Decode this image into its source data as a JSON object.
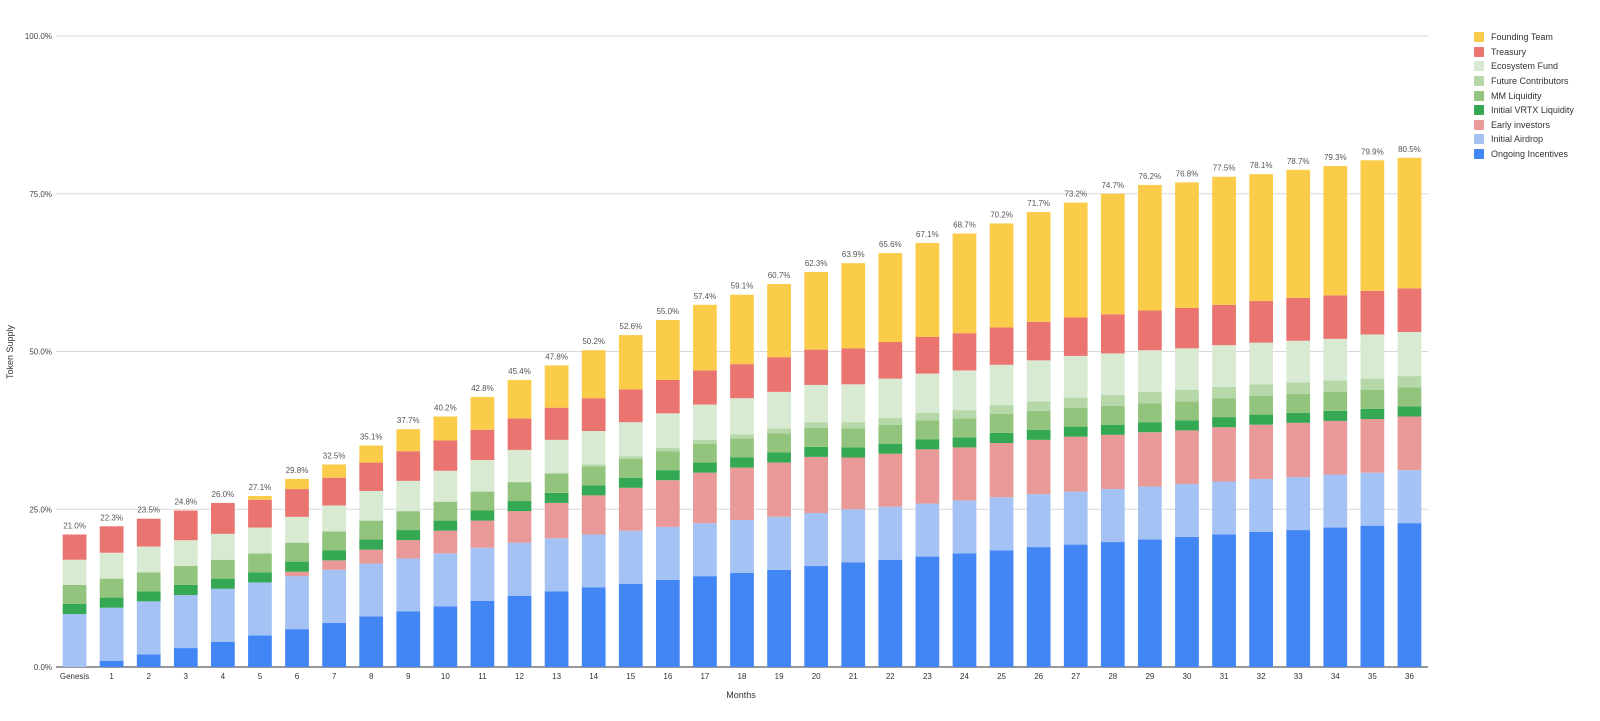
{
  "chart_data": {
    "type": "bar",
    "stacked": true,
    "title": "",
    "xlabel": "Months",
    "ylabel": "Token Supply",
    "ylim": [
      0,
      100
    ],
    "yticks": [
      "0.0%",
      "25.0%",
      "50.0%",
      "75.0%",
      "100.0%"
    ],
    "grid": true,
    "legend_position": "top-right",
    "categories": [
      "Genesis",
      "1",
      "2",
      "3",
      "4",
      "5",
      "6",
      "7",
      "8",
      "9",
      "10",
      "11",
      "12",
      "13",
      "14",
      "15",
      "16",
      "17",
      "18",
      "19",
      "20",
      "21",
      "22",
      "23",
      "24",
      "25",
      "26",
      "27",
      "28",
      "29",
      "30",
      "31",
      "32",
      "33",
      "34",
      "35",
      "36"
    ],
    "totals": [
      "21.0%",
      "22.3%",
      "23.5%",
      "24.8%",
      "26.0%",
      "27.1%",
      "29.8%",
      "32.5%",
      "35.1%",
      "37.7%",
      "40.2%",
      "42.8%",
      "45.4%",
      "47.8%",
      "50.2%",
      "52.6%",
      "55.0%",
      "57.4%",
      "59.1%",
      "60.7%",
      "62.3%",
      "63.9%",
      "65.6%",
      "67.1%",
      "68.7%",
      "70.2%",
      "71.7%",
      "73.2%",
      "74.7%",
      "76.2%",
      "76.8%",
      "77.5%",
      "78.1%",
      "78.7%",
      "79.3%",
      "79.9%",
      "80.5%"
    ],
    "series": [
      {
        "name": "Ongoing Incentives",
        "color": "#4285f4",
        "values": [
          0,
          1.0,
          2.0,
          3.0,
          4.0,
          5.0,
          6.0,
          7.0,
          8.0,
          8.8,
          9.6,
          10.5,
          11.3,
          12.0,
          12.6,
          13.2,
          13.8,
          14.4,
          14.9,
          15.4,
          16.0,
          16.6,
          17.0,
          17.5,
          18.0,
          18.5,
          19.0,
          19.4,
          19.8,
          20.2,
          20.6,
          21.0,
          21.4,
          21.7,
          22.1,
          22.4,
          22.8
        ]
      },
      {
        "name": "Initial Airdrop",
        "color": "#a4c2f4",
        "values": [
          8.4,
          8.4,
          8.4,
          8.4,
          8.4,
          8.4,
          8.4,
          8.4,
          8.4,
          8.4,
          8.4,
          8.4,
          8.4,
          8.4,
          8.4,
          8.4,
          8.4,
          8.4,
          8.4,
          8.4,
          8.4,
          8.4,
          8.4,
          8.4,
          8.4,
          8.4,
          8.4,
          8.4,
          8.4,
          8.4,
          8.4,
          8.4,
          8.4,
          8.4,
          8.4,
          8.4,
          8.4
        ]
      },
      {
        "name": "Early investors",
        "color": "#ea9999",
        "values": [
          0,
          0,
          0,
          0,
          0,
          0,
          0.7,
          1.5,
          2.2,
          2.9,
          3.6,
          4.3,
          5.0,
          5.6,
          6.2,
          6.8,
          7.4,
          8.0,
          8.3,
          8.6,
          8.9,
          8.2,
          8.4,
          8.6,
          8.4,
          8.6,
          8.6,
          8.7,
          8.6,
          8.6,
          8.5,
          8.6,
          8.6,
          8.6,
          8.5,
          8.5,
          8.5
        ]
      },
      {
        "name": "Initial VRTX Liquidity",
        "color": "#34a853",
        "values": [
          1.6,
          1.6,
          1.6,
          1.6,
          1.6,
          1.6,
          1.6,
          1.6,
          1.6,
          1.6,
          1.6,
          1.6,
          1.6,
          1.6,
          1.6,
          1.6,
          1.6,
          1.6,
          1.6,
          1.6,
          1.6,
          1.6,
          1.6,
          1.6,
          1.6,
          1.6,
          1.6,
          1.6,
          1.6,
          1.6,
          1.6,
          1.6,
          1.6,
          1.6,
          1.6,
          1.6,
          1.6
        ]
      },
      {
        "name": "MM Liquidity",
        "color": "#93c47d",
        "values": [
          3.0,
          3.0,
          3.0,
          3.0,
          3.0,
          3.0,
          3.0,
          3.0,
          3.0,
          3.0,
          3.0,
          3.0,
          3.0,
          3.0,
          3.0,
          3.0,
          3.0,
          3.0,
          3.0,
          3.0,
          3.0,
          3.0,
          3.0,
          3.0,
          3.0,
          3.0,
          3.0,
          3.0,
          3.0,
          3.0,
          3.0,
          3.0,
          3.0,
          3.0,
          3.0,
          3.0,
          3.0
        ]
      },
      {
        "name": "Future Contributors",
        "color": "#b6d7a8",
        "values": [
          0,
          0,
          0,
          0,
          0,
          0,
          0,
          0,
          0,
          0,
          0,
          0,
          0,
          0.2,
          0.3,
          0.4,
          0.5,
          0.6,
          0.7,
          0.8,
          0.9,
          1.0,
          1.1,
          1.2,
          1.3,
          1.4,
          1.5,
          1.6,
          1.7,
          1.8,
          1.8,
          1.8,
          1.8,
          1.8,
          1.8,
          1.8,
          1.8
        ]
      },
      {
        "name": "Ecosystem Fund",
        "color": "#d9ead3",
        "values": [
          4.0,
          4.1,
          4.1,
          4.1,
          4.1,
          4.1,
          4.1,
          4.1,
          4.7,
          4.8,
          4.9,
          5.0,
          5.1,
          5.2,
          5.3,
          5.4,
          5.5,
          5.6,
          5.7,
          5.8,
          5.9,
          6.0,
          6.2,
          6.2,
          6.3,
          6.4,
          6.5,
          6.6,
          6.6,
          6.6,
          6.6,
          6.6,
          6.6,
          6.6,
          6.6,
          7.0,
          7.0
        ]
      },
      {
        "name": "Treasury",
        "color": "#ea7570",
        "values": [
          4.0,
          4.2,
          4.4,
          4.7,
          4.9,
          4.4,
          4.4,
          4.4,
          4.5,
          4.7,
          4.8,
          4.8,
          5.0,
          5.1,
          5.2,
          5.2,
          5.3,
          5.4,
          5.4,
          5.5,
          5.6,
          5.7,
          5.8,
          5.8,
          5.9,
          5.9,
          6.1,
          6.1,
          6.2,
          6.3,
          6.4,
          6.4,
          6.6,
          6.8,
          6.9,
          6.9,
          6.9
        ]
      },
      {
        "name": "Founding Team",
        "color": "#fbcc4a",
        "values": [
          0,
          0,
          0,
          0,
          0,
          0.6,
          1.6,
          2.1,
          2.7,
          3.5,
          3.8,
          5.2,
          6.1,
          6.7,
          7.6,
          8.6,
          9.5,
          10.4,
          11.0,
          11.6,
          12.3,
          13.5,
          14.1,
          14.9,
          15.8,
          16.5,
          17.4,
          18.2,
          19.1,
          19.9,
          19.9,
          20.3,
          20.1,
          20.3,
          20.5,
          20.7,
          20.7
        ]
      }
    ],
    "legend_order": [
      "Founding Team",
      "Treasury",
      "Ecosystem Fund",
      "Future Contributors",
      "MM Liquidity",
      "Initial VRTX Liquidity",
      "Early investors",
      "Initial Airdrop",
      "Ongoing Incentives"
    ]
  }
}
